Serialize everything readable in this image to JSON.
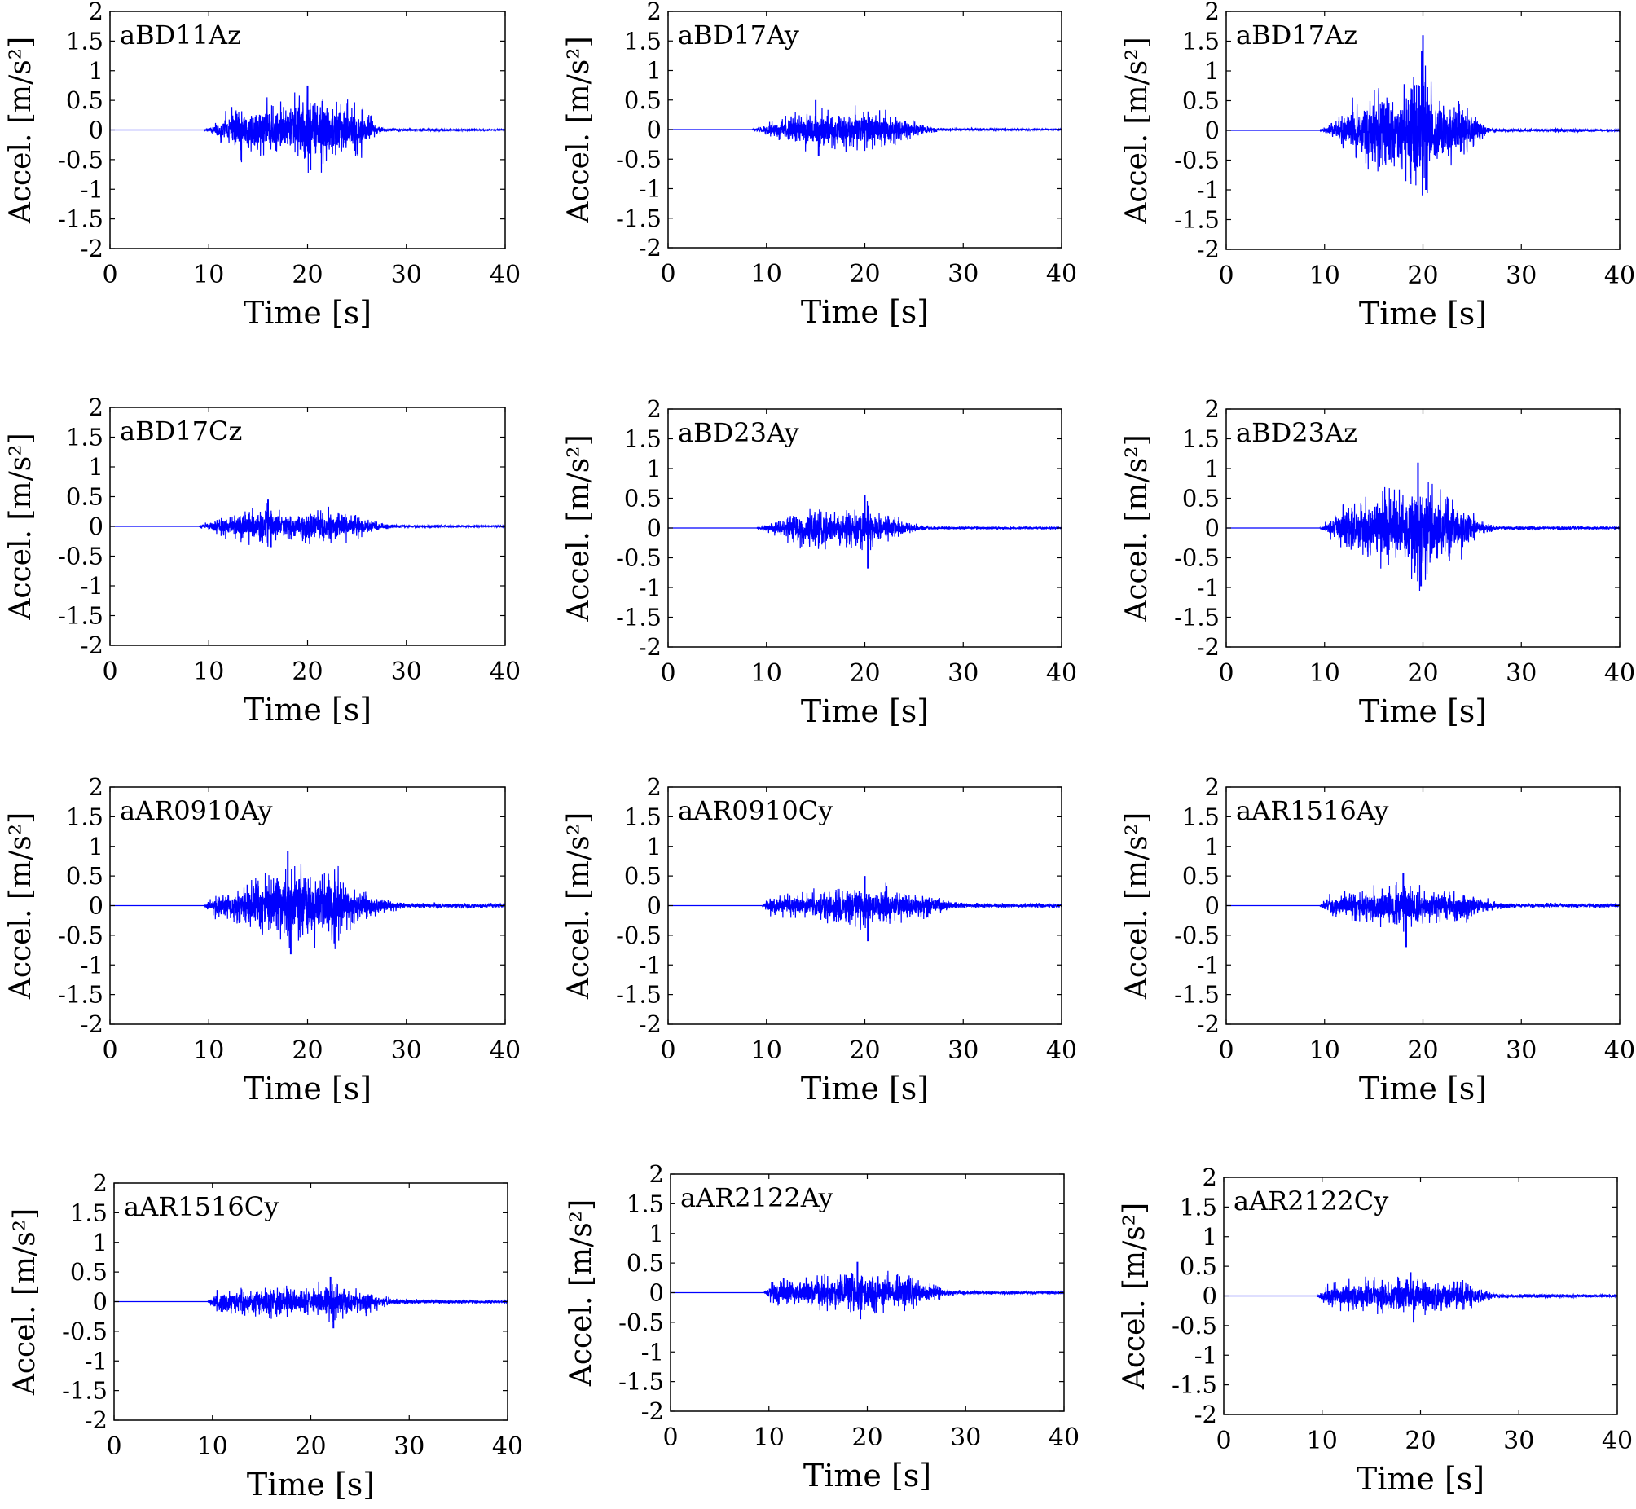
{
  "figure": {
    "signal_color": "#0000ff",
    "axis_color": "#000000"
  },
  "chart_data": [
    {
      "type": "line",
      "title": "aBD11Az",
      "xlabel": "Time [s]",
      "ylabel": "Accel. [m/s²]",
      "xlim": [
        0,
        40
      ],
      "ylim": [
        -2,
        2
      ],
      "xticks": [
        0,
        10,
        20,
        30,
        40
      ],
      "yticks": [
        2,
        1.5,
        1,
        0.5,
        0,
        -0.5,
        -1,
        -1.5,
        -2
      ],
      "xtick_labels": [
        "0",
        "10",
        "20",
        "30",
        "40"
      ],
      "ytick_labels": [
        "2",
        "1.5",
        "1",
        "0.5",
        "0",
        "-0.5",
        "-1",
        "-1.5",
        "-2"
      ],
      "envelope": {
        "t": [
          0,
          9.5,
          10.5,
          12.5,
          15,
          17,
          20,
          22,
          23.5,
          25,
          26,
          27,
          28.5,
          40
        ],
        "max": [
          0,
          0,
          0.1,
          0.55,
          0.6,
          0.55,
          0.75,
          0.75,
          0.6,
          0.55,
          0.5,
          0.1,
          0.02,
          0.01
        ]
      },
      "peak_max": 0.75,
      "peak_min": -0.68
    },
    {
      "type": "line",
      "title": "aBD17Ay",
      "xlabel": "Time [s]",
      "ylabel": "Accel. [m/s²]",
      "xlim": [
        0,
        40
      ],
      "ylim": [
        -2,
        2
      ],
      "xticks": [
        0,
        10,
        20,
        30,
        40
      ],
      "yticks": [
        2,
        1.5,
        1,
        0.5,
        0,
        -0.5,
        -1,
        -1.5,
        -2
      ],
      "xtick_labels": [
        "0",
        "10",
        "20",
        "30",
        "40"
      ],
      "ytick_labels": [
        "2",
        "1.5",
        "1",
        "0.5",
        "0",
        "-0.5",
        "-1",
        "-1.5",
        "-2"
      ],
      "envelope": {
        "t": [
          0,
          8.5,
          10,
          12,
          15,
          17,
          20,
          22,
          24,
          26,
          28,
          40
        ],
        "max": [
          0,
          0,
          0.12,
          0.3,
          0.5,
          0.35,
          0.5,
          0.4,
          0.3,
          0.12,
          0.02,
          0.01
        ]
      },
      "peak_max": 0.5,
      "peak_min": -0.45
    },
    {
      "type": "line",
      "title": "aBD17Az",
      "xlabel": "Time [s]",
      "ylabel": "Accel. [m/s²]",
      "xlim": [
        0,
        40
      ],
      "ylim": [
        -2,
        2
      ],
      "xticks": [
        0,
        10,
        20,
        30,
        40
      ],
      "yticks": [
        2,
        1.5,
        1,
        0.5,
        0,
        -0.5,
        -1,
        -1.5,
        -2
      ],
      "xtick_labels": [
        "0",
        "10",
        "20",
        "30",
        "40"
      ],
      "ytick_labels": [
        "2",
        "1.5",
        "1",
        "0.5",
        "0",
        "-0.5",
        "-1",
        "-1.5",
        "-2"
      ],
      "envelope": {
        "t": [
          0,
          9.5,
          11,
          13,
          15.5,
          17,
          20,
          21,
          23,
          25,
          26.5,
          40
        ],
        "max": [
          0,
          0,
          0.2,
          0.6,
          0.95,
          0.7,
          1.6,
          0.95,
          0.6,
          0.5,
          0.05,
          0.01
        ]
      },
      "peak_max": 1.6,
      "peak_min": -1.0
    },
    {
      "type": "line",
      "title": "aBD17Cz",
      "xlabel": "Time [s]",
      "ylabel": "Accel. [m/s²]",
      "xlim": [
        0,
        40
      ],
      "ylim": [
        -2,
        2
      ],
      "xticks": [
        0,
        10,
        20,
        30,
        40
      ],
      "yticks": [
        2,
        1.5,
        1,
        0.5,
        0,
        -0.5,
        -1,
        -1.5,
        -2
      ],
      "xtick_labels": [
        "0",
        "10",
        "20",
        "30",
        "40"
      ],
      "ytick_labels": [
        "2",
        "1.5",
        "1",
        "0.5",
        "0",
        "-0.5",
        "-1",
        "-1.5",
        "-2"
      ],
      "envelope": {
        "t": [
          0,
          9,
          10.5,
          13,
          16,
          18,
          21,
          23,
          25,
          27,
          29,
          40
        ],
        "max": [
          0,
          0,
          0.15,
          0.3,
          0.45,
          0.25,
          0.4,
          0.3,
          0.25,
          0.1,
          0.02,
          0.01
        ]
      },
      "peak_max": 0.45,
      "peak_min": -0.35
    },
    {
      "type": "line",
      "title": "aBD23Ay",
      "xlabel": "Time [s]",
      "ylabel": "Accel. [m/s²]",
      "xlim": [
        0,
        40
      ],
      "ylim": [
        -2,
        2
      ],
      "xticks": [
        0,
        10,
        20,
        30,
        40
      ],
      "yticks": [
        2,
        1.5,
        1,
        0.5,
        0,
        -0.5,
        -1,
        -1.5,
        -2
      ],
      "xtick_labels": [
        "0",
        "10",
        "20",
        "30",
        "40"
      ],
      "ytick_labels": [
        "2",
        "1.5",
        "1",
        "0.5",
        "0",
        "-0.5",
        "-1",
        "-1.5",
        "-2"
      ],
      "envelope": {
        "t": [
          0,
          9,
          10.5,
          12.5,
          15,
          17,
          20,
          21,
          23,
          25,
          27,
          40
        ],
        "max": [
          0,
          0,
          0.12,
          0.3,
          0.5,
          0.3,
          0.55,
          0.35,
          0.25,
          0.1,
          0.02,
          0.01
        ]
      },
      "peak_max": 0.55,
      "peak_min": -0.68
    },
    {
      "type": "line",
      "title": "aBD23Az",
      "xlabel": "Time [s]",
      "ylabel": "Accel. [m/s²]",
      "xlim": [
        0,
        40
      ],
      "ylim": [
        -2,
        2
      ],
      "xticks": [
        0,
        10,
        20,
        30,
        40
      ],
      "yticks": [
        2,
        1.5,
        1,
        0.5,
        0,
        -0.5,
        -1,
        -1.5,
        -2
      ],
      "xtick_labels": [
        "0",
        "10",
        "20",
        "30",
        "40"
      ],
      "ytick_labels": [
        "2",
        "1.5",
        "1",
        "0.5",
        "0",
        "-0.5",
        "-1",
        "-1.5",
        "-2"
      ],
      "envelope": {
        "t": [
          0,
          9.5,
          11,
          13,
          16,
          18,
          19.5,
          21,
          23,
          24.5,
          26,
          27.5,
          40
        ],
        "max": [
          0,
          0,
          0.3,
          0.6,
          0.8,
          0.75,
          1.1,
          0.95,
          0.6,
          0.5,
          0.15,
          0.05,
          0.01
        ]
      },
      "peak_max": 1.1,
      "peak_min": -0.98
    },
    {
      "type": "line",
      "title": "aAR0910Ay",
      "xlabel": "Time [s]",
      "ylabel": "Accel. [m/s²]",
      "xlim": [
        0,
        40
      ],
      "ylim": [
        -2,
        2
      ],
      "xticks": [
        0,
        10,
        20,
        30,
        40
      ],
      "yticks": [
        2,
        1.5,
        1,
        0.5,
        0,
        -0.5,
        -1,
        -1.5,
        -2
      ],
      "xtick_labels": [
        "0",
        "10",
        "20",
        "30",
        "40"
      ],
      "ytick_labels": [
        "2",
        "1.5",
        "1",
        "0.5",
        "0",
        "-0.5",
        "-1",
        "-1.5",
        "-2"
      ],
      "envelope": {
        "t": [
          0,
          9.5,
          10.5,
          13,
          15,
          18,
          20,
          22.5,
          24,
          26,
          28,
          30,
          40
        ],
        "max": [
          0,
          0,
          0.25,
          0.4,
          0.6,
          0.9,
          0.7,
          0.85,
          0.5,
          0.3,
          0.15,
          0.06,
          0.05
        ]
      },
      "peak_max": 0.92,
      "peak_min": -0.82
    },
    {
      "type": "line",
      "title": "aAR0910Cy",
      "xlabel": "Time [s]",
      "ylabel": "Accel. [m/s²]",
      "xlim": [
        0,
        40
      ],
      "ylim": [
        -2,
        2
      ],
      "xticks": [
        0,
        10,
        20,
        30,
        40
      ],
      "yticks": [
        2,
        1.5,
        1,
        0.5,
        0,
        -0.5,
        -1,
        -1.5,
        -2
      ],
      "xtick_labels": [
        "0",
        "10",
        "20",
        "30",
        "40"
      ],
      "ytick_labels": [
        "2",
        "1.5",
        "1",
        "0.5",
        "0",
        "-0.5",
        "-1",
        "-1.5",
        "-2"
      ],
      "envelope": {
        "t": [
          0,
          9.5,
          10.5,
          13,
          16,
          20,
          23,
          25,
          27,
          29,
          31,
          40
        ],
        "max": [
          0,
          0,
          0.22,
          0.25,
          0.35,
          0.5,
          0.35,
          0.3,
          0.2,
          0.08,
          0.05,
          0.05
        ]
      },
      "peak_max": 0.5,
      "peak_min": -0.6
    },
    {
      "type": "line",
      "title": "aAR1516Ay",
      "xlabel": "Time [s]",
      "ylabel": "Accel. [m/s²]",
      "xlim": [
        0,
        40
      ],
      "ylim": [
        -2,
        2
      ],
      "xticks": [
        0,
        10,
        20,
        30,
        40
      ],
      "yticks": [
        2,
        1.5,
        1,
        0.5,
        0,
        -0.5,
        -1,
        -1.5,
        -2
      ],
      "xtick_labels": [
        "0",
        "10",
        "20",
        "30",
        "40"
      ],
      "ytick_labels": [
        "2",
        "1.5",
        "1",
        "0.5",
        "0",
        "-0.5",
        "-1",
        "-1.5",
        "-2"
      ],
      "envelope": {
        "t": [
          0,
          9.5,
          10.5,
          13,
          16,
          18,
          20,
          23,
          25,
          27,
          29,
          40
        ],
        "max": [
          0,
          0,
          0.22,
          0.3,
          0.4,
          0.55,
          0.4,
          0.35,
          0.3,
          0.1,
          0.05,
          0.05
        ]
      },
      "peak_max": 0.55,
      "peak_min": -0.7
    },
    {
      "type": "line",
      "title": "aAR1516Cy",
      "xlabel": "Time [s]",
      "ylabel": "Accel. [m/s²]",
      "xlim": [
        0,
        40
      ],
      "ylim": [
        -2,
        2
      ],
      "xticks": [
        0,
        10,
        20,
        30,
        40
      ],
      "yticks": [
        2,
        1.5,
        1,
        0.5,
        0,
        -0.5,
        -1,
        -1.5,
        -2
      ],
      "xtick_labels": [
        "0",
        "10",
        "20",
        "30",
        "40"
      ],
      "ytick_labels": [
        "2",
        "1.5",
        "1",
        "0.5",
        "0",
        "-0.5",
        "-1",
        "-1.5",
        "-2"
      ],
      "envelope": {
        "t": [
          0,
          9.5,
          10.5,
          13,
          16,
          19,
          22,
          24,
          26,
          27.5,
          30,
          40
        ],
        "max": [
          0,
          0,
          0.3,
          0.3,
          0.35,
          0.3,
          0.42,
          0.3,
          0.25,
          0.1,
          0.05,
          0.04
        ]
      },
      "peak_max": 0.42,
      "peak_min": -0.45
    },
    {
      "type": "line",
      "title": "aAR2122Ay",
      "xlabel": "Time [s]",
      "ylabel": "Accel. [m/s²]",
      "xlim": [
        0,
        40
      ],
      "ylim": [
        -2,
        2
      ],
      "xticks": [
        0,
        10,
        20,
        30,
        40
      ],
      "yticks": [
        2,
        1.5,
        1,
        0.5,
        0,
        -0.5,
        -1,
        -1.5,
        -2
      ],
      "xtick_labels": [
        "0",
        "10",
        "20",
        "30",
        "40"
      ],
      "ytick_labels": [
        "2",
        "1.5",
        "1",
        "0.5",
        "0",
        "-0.5",
        "-1",
        "-1.5",
        "-2"
      ],
      "envelope": {
        "t": [
          0,
          9.5,
          10.5,
          13,
          16,
          19,
          22,
          24,
          26,
          28,
          30,
          40
        ],
        "max": [
          0,
          0,
          0.3,
          0.3,
          0.4,
          0.5,
          0.4,
          0.35,
          0.25,
          0.08,
          0.04,
          0.03
        ]
      },
      "peak_max": 0.52,
      "peak_min": -0.45
    },
    {
      "type": "line",
      "title": "aAR2122Cy",
      "xlabel": "Time [s]",
      "ylabel": "Accel. [m/s²]",
      "xlim": [
        0,
        40
      ],
      "ylim": [
        -2,
        2
      ],
      "xticks": [
        0,
        10,
        20,
        30,
        40
      ],
      "yticks": [
        2,
        1.5,
        1,
        0.5,
        0,
        -0.5,
        -1,
        -1.5,
        -2
      ],
      "xtick_labels": [
        "0",
        "10",
        "20",
        "30",
        "40"
      ],
      "ytick_labels": [
        "2",
        "1.5",
        "1",
        "0.5",
        "0",
        "-0.5",
        "-1",
        "-1.5",
        "-2"
      ],
      "envelope": {
        "t": [
          0,
          9.5,
          10.5,
          13,
          16,
          19,
          22,
          24,
          26,
          27.5,
          30,
          40
        ],
        "max": [
          0,
          0,
          0.28,
          0.32,
          0.38,
          0.4,
          0.35,
          0.3,
          0.2,
          0.06,
          0.03,
          0.02
        ]
      },
      "peak_max": 0.4,
      "peak_min": -0.45
    }
  ]
}
